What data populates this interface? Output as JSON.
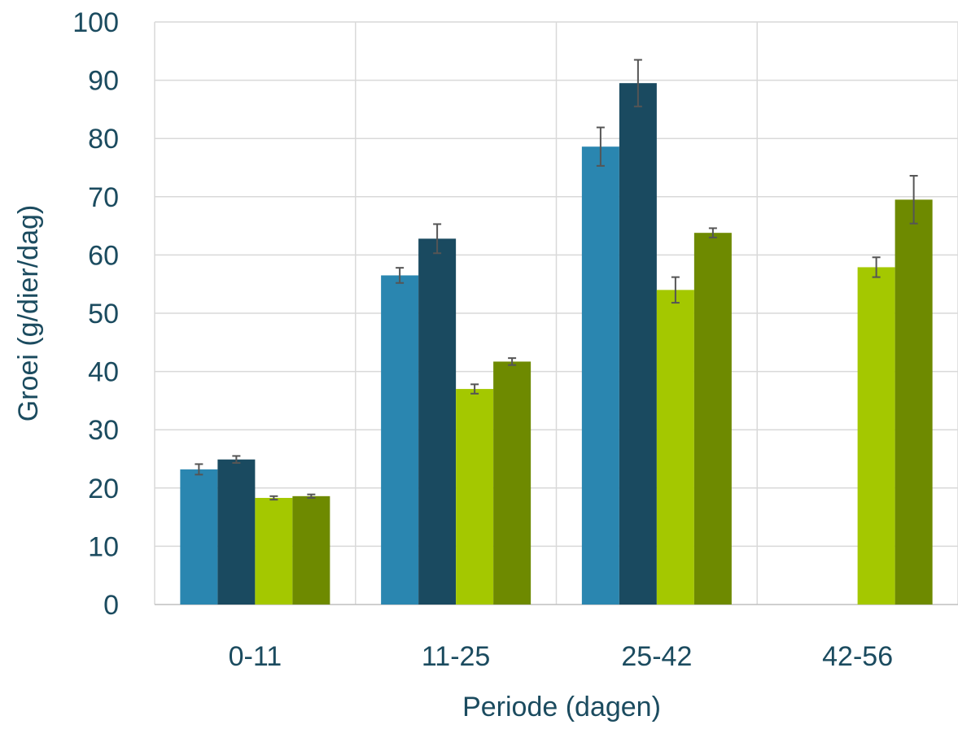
{
  "chart_data": {
    "type": "bar",
    "title": "",
    "xlabel": "Periode (dagen)",
    "ylabel": "Groei (g/dier/dag)",
    "ylim": [
      0,
      100
    ],
    "yticks": [
      0,
      10,
      20,
      30,
      40,
      50,
      60,
      70,
      80,
      90,
      100
    ],
    "grid": true,
    "legend": "none",
    "categories": [
      "0-11",
      "11-25",
      "25-42",
      "42-56"
    ],
    "series": [
      {
        "color": "#2a86b0",
        "values": [
          23.2,
          56.5,
          78.6,
          null
        ],
        "errors": [
          0.9,
          1.3,
          3.3,
          null
        ]
      },
      {
        "color": "#1a4a60",
        "values": [
          24.9,
          62.8,
          89.5,
          null
        ],
        "errors": [
          0.6,
          2.5,
          4.0,
          null
        ]
      },
      {
        "color": "#a4c800",
        "values": [
          18.3,
          37.0,
          54.0,
          57.9
        ],
        "errors": [
          0.3,
          0.8,
          2.2,
          1.7
        ]
      },
      {
        "color": "#6e8a00",
        "values": [
          18.6,
          41.7,
          63.8,
          69.5
        ],
        "errors": [
          0.3,
          0.6,
          0.8,
          4.1
        ]
      }
    ]
  }
}
